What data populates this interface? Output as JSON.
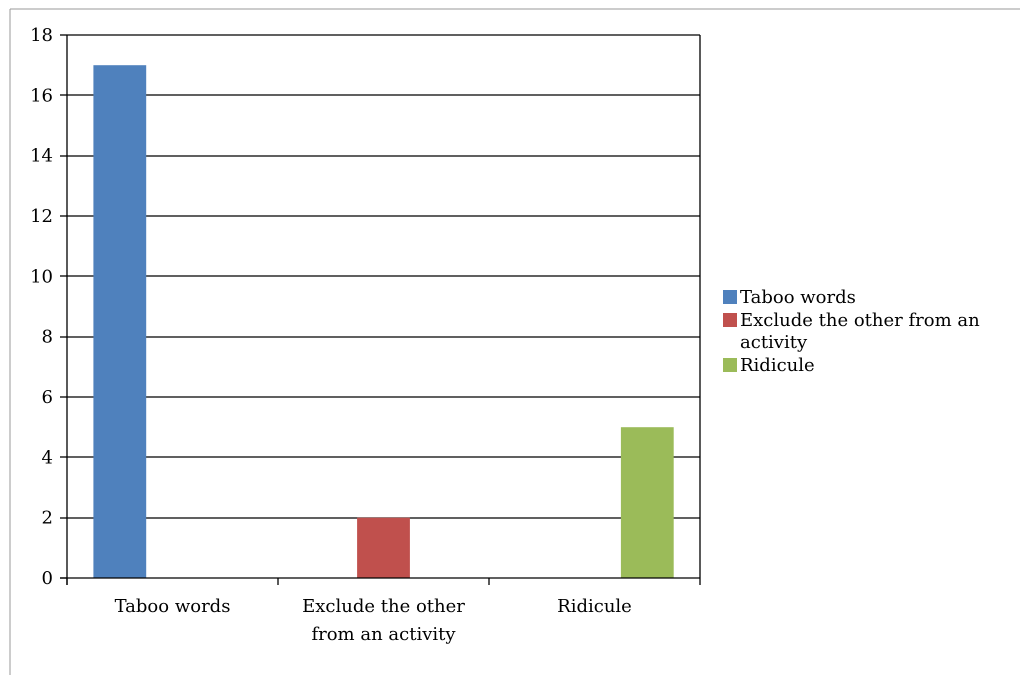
{
  "chart_data": {
    "type": "bar",
    "title": "",
    "xlabel": "",
    "ylabel": "",
    "categories": [
      "Taboo words",
      "Exclude the other from an activity",
      "Ridicule"
    ],
    "category_label_lines": [
      [
        "Taboo words"
      ],
      [
        "Exclude the other",
        "from an activity"
      ],
      [
        "Ridicule"
      ]
    ],
    "series": [
      {
        "name": "Taboo words",
        "color": "#4F81BD",
        "values": [
          17,
          null,
          null
        ]
      },
      {
        "name": "Exclude the other from an activity",
        "color": "#C0504D",
        "values": [
          null,
          2,
          null
        ]
      },
      {
        "name": "Ridicule",
        "color": "#9BBB59",
        "values": [
          null,
          null,
          5
        ]
      }
    ],
    "legend_label_lines": [
      [
        "Taboo words"
      ],
      [
        "Exclude the other from an",
        "activity"
      ],
      [
        "Ridicule"
      ]
    ],
    "ylim": [
      0,
      18
    ],
    "yticks": [
      0,
      2,
      4,
      6,
      8,
      10,
      12,
      14,
      16,
      18
    ],
    "grid": true,
    "legend": "right"
  }
}
